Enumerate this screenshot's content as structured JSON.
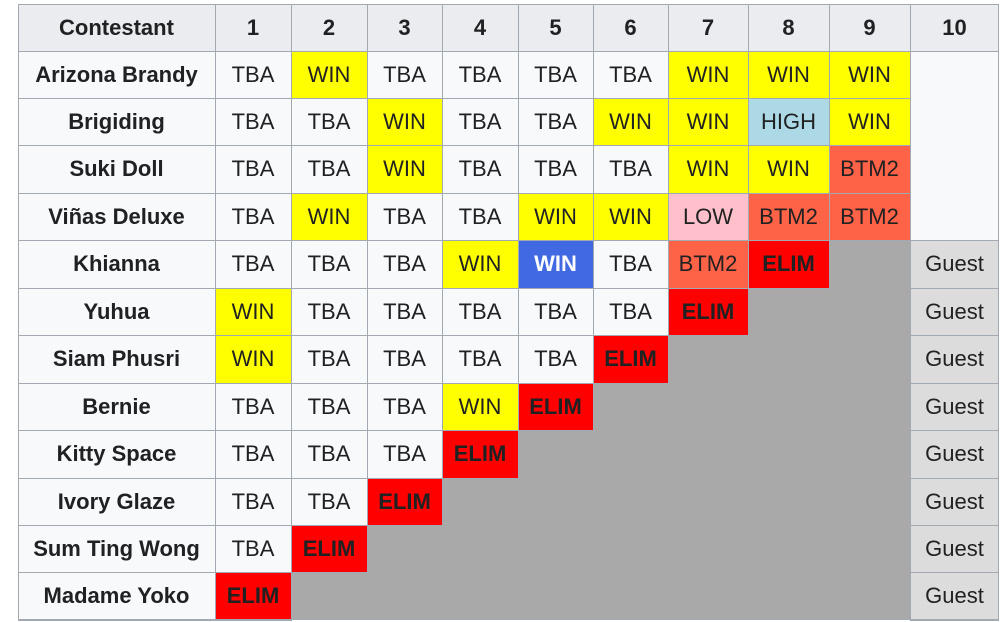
{
  "header": {
    "contestant_label": "Contestant",
    "episodes": [
      "1",
      "2",
      "3",
      "4",
      "5",
      "6",
      "7",
      "8",
      "9",
      "10"
    ]
  },
  "rows": [
    {
      "name": "Arizona Brandy",
      "results": [
        "TBA",
        "WIN",
        "TBA",
        "TBA",
        "TBA",
        "TBA",
        "WIN",
        "WIN",
        "WIN"
      ],
      "finale": ""
    },
    {
      "name": "Brigiding",
      "results": [
        "TBA",
        "TBA",
        "WIN",
        "TBA",
        "TBA",
        "WIN",
        "WIN",
        "HIGH",
        "WIN"
      ],
      "finale": ""
    },
    {
      "name": "Suki Doll",
      "results": [
        "TBA",
        "TBA",
        "WIN",
        "TBA",
        "TBA",
        "TBA",
        "WIN",
        "WIN",
        "BTM2"
      ],
      "finale": ""
    },
    {
      "name": "Viñas Deluxe",
      "results": [
        "TBA",
        "WIN",
        "TBA",
        "TBA",
        "WIN",
        "WIN",
        "LOW",
        "BTM2",
        "BTM2"
      ],
      "finale": ""
    },
    {
      "name": "Khianna",
      "results": [
        "TBA",
        "TBA",
        "TBA",
        "WIN",
        "WIN",
        "TBA",
        "BTM2",
        "ELIM"
      ],
      "finale": "Guest"
    },
    {
      "name": "Yuhua",
      "results": [
        "WIN",
        "TBA",
        "TBA",
        "TBA",
        "TBA",
        "TBA",
        "ELIM"
      ],
      "finale": "Guest"
    },
    {
      "name": "Siam Phusri",
      "results": [
        "WIN",
        "TBA",
        "TBA",
        "TBA",
        "TBA",
        "ELIM"
      ],
      "finale": "Guest"
    },
    {
      "name": "Bernie",
      "results": [
        "TBA",
        "TBA",
        "TBA",
        "WIN",
        "ELIM"
      ],
      "finale": "Guest"
    },
    {
      "name": "Kitty Space",
      "results": [
        "TBA",
        "TBA",
        "TBA",
        "ELIM"
      ],
      "finale": "Guest"
    },
    {
      "name": "Ivory Glaze",
      "results": [
        "TBA",
        "TBA",
        "ELIM"
      ],
      "finale": "Guest"
    },
    {
      "name": "Sum Ting Wong",
      "results": [
        "TBA",
        "ELIM"
      ],
      "finale": "Guest"
    },
    {
      "name": "Madame Yoko",
      "results": [
        "ELIM"
      ],
      "finale": "Guest"
    }
  ],
  "special": {
    "row": 4,
    "col": 4,
    "style": "topwin"
  },
  "colors": {
    "WIN": "#ffff00",
    "HIGH": "#add8e6",
    "LOW": "#ffc0cb",
    "BTM2": "#ff6347",
    "ELIM": "#ff0000",
    "TBA": "#f8f9fa",
    "Guest": "#dcdcdc",
    "eliminated": "#a9a9a9",
    "border": "#a2a9b1"
  }
}
